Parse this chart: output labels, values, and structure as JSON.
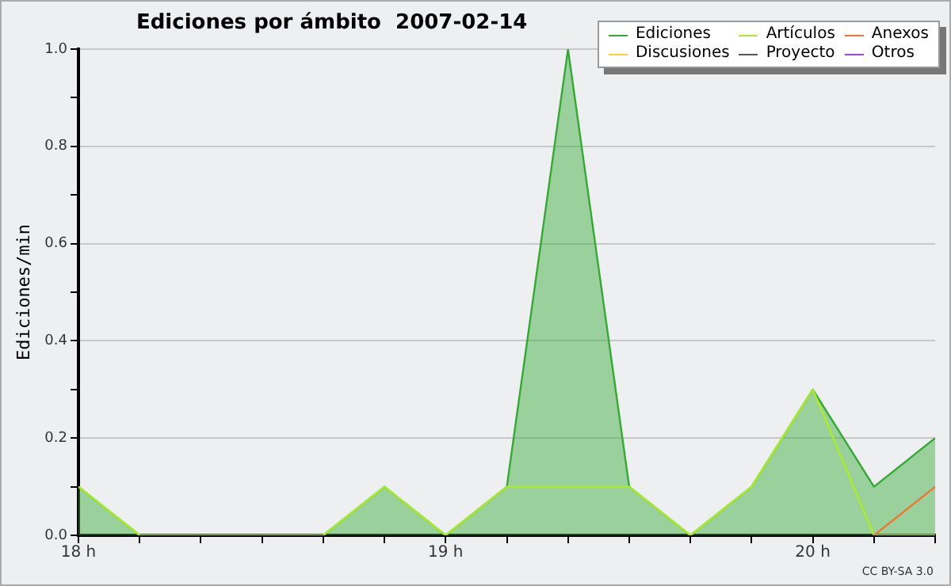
{
  "chart_data": {
    "type": "area",
    "title": "Ediciones por ámbito  2007-02-14",
    "ylabel": "Ediciones/min",
    "x": [
      18,
      18.1667,
      18.3333,
      18.5,
      18.6667,
      18.8333,
      19,
      19.1667,
      19.3333,
      19.5,
      19.6667,
      19.8333,
      20,
      20.1667,
      20.3333
    ],
    "series": [
      {
        "name": "Ediciones",
        "type": "area",
        "color": "#33aa33",
        "values": [
          0.1,
          0,
          0,
          0,
          0,
          0.1,
          0,
          0.1,
          1.0,
          0.1,
          0,
          0.1,
          0.3,
          0.1,
          0.2
        ]
      },
      {
        "name": "Artículos",
        "type": "line",
        "color": "#aaee22",
        "values": [
          0.1,
          0,
          0,
          0,
          0,
          0.1,
          0,
          0.1,
          0.1,
          0.1,
          0,
          0.1,
          0.3,
          0,
          0
        ]
      },
      {
        "name": "Anexos",
        "type": "line",
        "color": "#ee7733",
        "values": [
          null,
          null,
          null,
          null,
          null,
          null,
          null,
          null,
          null,
          null,
          null,
          null,
          null,
          0,
          0.1
        ]
      },
      {
        "name": "Discusiones",
        "type": "line",
        "color": "#ffcc33",
        "values": [
          null,
          null,
          null,
          null,
          null,
          null,
          null,
          null,
          null,
          null,
          null,
          null,
          null,
          null,
          null
        ]
      },
      {
        "name": "Proyecto",
        "type": "line",
        "color": "#555555",
        "values": [
          null,
          null,
          null,
          null,
          null,
          null,
          null,
          null,
          null,
          null,
          null,
          null,
          null,
          null,
          null
        ]
      },
      {
        "name": "Otros",
        "type": "line",
        "color": "#9944ee",
        "values": [
          null,
          null,
          null,
          null,
          null,
          null,
          null,
          null,
          null,
          null,
          null,
          null,
          null,
          null,
          null
        ]
      }
    ],
    "xlim": [
      18,
      20.3333
    ],
    "xticks": [
      {
        "value": 18,
        "label": "18 h"
      },
      {
        "value": 18.1667,
        "label": null
      },
      {
        "value": 18.3333,
        "label": null
      },
      {
        "value": 18.5,
        "label": null
      },
      {
        "value": 18.6667,
        "label": null
      },
      {
        "value": 18.8333,
        "label": null
      },
      {
        "value": 19,
        "label": "19 h"
      },
      {
        "value": 19.1667,
        "label": null
      },
      {
        "value": 19.3333,
        "label": null
      },
      {
        "value": 19.5,
        "label": null
      },
      {
        "value": 19.6667,
        "label": null
      },
      {
        "value": 19.8333,
        "label": null
      },
      {
        "value": 20,
        "label": "20 h"
      },
      {
        "value": 20.1667,
        "label": null
      },
      {
        "value": 20.3333,
        "label": null
      }
    ],
    "ylim": [
      0,
      1
    ],
    "yticks": [
      {
        "value": 0,
        "label": "0.0"
      },
      {
        "value": 0.1,
        "label": null
      },
      {
        "value": 0.2,
        "label": "0.2"
      },
      {
        "value": 0.3,
        "label": null
      },
      {
        "value": 0.4,
        "label": "0.4"
      },
      {
        "value": 0.5,
        "label": null
      },
      {
        "value": 0.6,
        "label": "0.6"
      },
      {
        "value": 0.7,
        "label": null
      },
      {
        "value": 0.8,
        "label": "0.8"
      },
      {
        "value": 0.9,
        "label": null
      },
      {
        "value": 1,
        "label": "1.0"
      }
    ],
    "grid": "y",
    "legend": "top right",
    "marker": "none",
    "line_style": "solid",
    "annotations": [
      "CC BY-SA 3.0"
    ]
  }
}
